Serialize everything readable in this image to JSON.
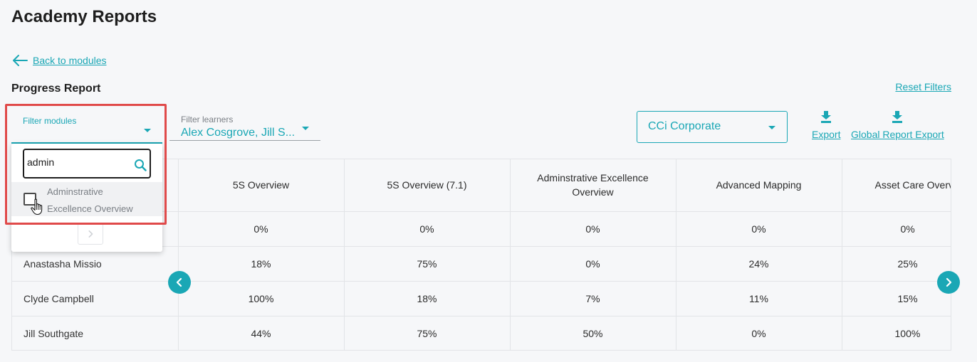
{
  "header": {
    "title": "Academy Reports"
  },
  "nav": {
    "back_label": "Back to modules"
  },
  "report": {
    "title": "Progress Report",
    "reset_label": "Reset Filters"
  },
  "filters": {
    "modules_label": "Filter modules",
    "learners_label": "Filter learners",
    "learners_value": "Alex Cosgrove, Jill S...",
    "organization_value": "CCi Corporate"
  },
  "exports": {
    "export_label": "Export",
    "global_label": "Global Report Export"
  },
  "dropdown": {
    "search_value": "admin",
    "option_line1": "Adminstrative",
    "option_line2": "Excellence Overview"
  },
  "table": {
    "columns": [
      "5S Overview",
      "5S Overview (7.1)",
      "Adminstrative Excellence Overview",
      "Advanced Mapping",
      "Asset Care Overview"
    ],
    "rows": [
      {
        "name": "",
        "values": [
          "0%",
          "0%",
          "0%",
          "0%",
          "0%"
        ]
      },
      {
        "name": "Anastasha Missio",
        "values": [
          "18%",
          "75%",
          "0%",
          "24%",
          "25%"
        ]
      },
      {
        "name": "Clyde Campbell",
        "values": [
          "100%",
          "18%",
          "7%",
          "11%",
          "15%"
        ]
      },
      {
        "name": "Jill Southgate",
        "values": [
          "44%",
          "75%",
          "50%",
          "0%",
          "100%"
        ]
      }
    ]
  },
  "colors": {
    "accent": "#1aa7b5",
    "highlight": "#e04a4a",
    "background": "#f6f7f9"
  },
  "icons": [
    "arrow-left-icon",
    "caret-down-icon",
    "download-icon",
    "search-icon",
    "chevron-left-icon",
    "chevron-right-icon",
    "pointer-hand-icon"
  ]
}
